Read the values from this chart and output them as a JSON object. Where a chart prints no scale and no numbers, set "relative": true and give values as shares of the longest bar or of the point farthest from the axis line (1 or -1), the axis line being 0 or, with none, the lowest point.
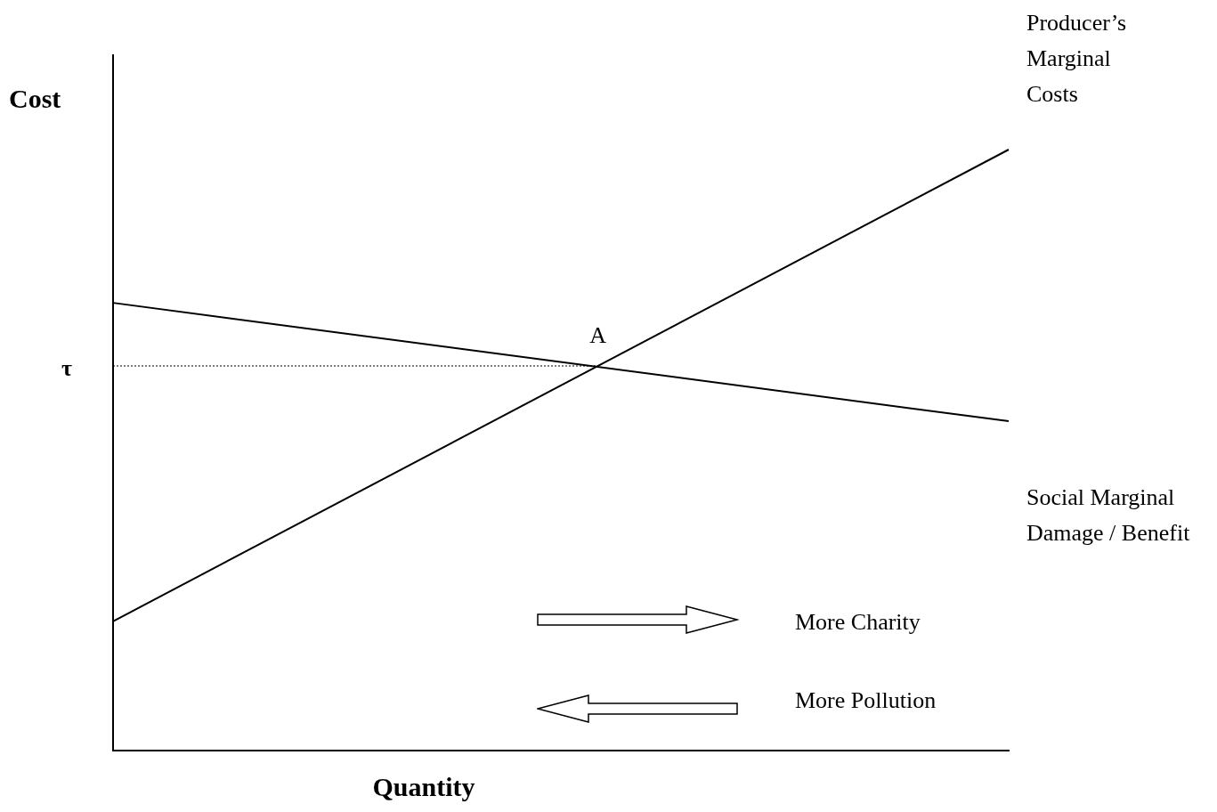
{
  "chart_data": {
    "type": "line",
    "relative": true,
    "ylabel": "Cost",
    "xlabel": "Quantity",
    "categories": [
      null,
      null
    ],
    "series": [
      {
        "name": "Producer’s Marginal Costs",
        "color": "#000000",
        "values": [
          0.215,
          1
        ]
      },
      {
        "name": "Social Marginal Damage / Benefit",
        "color": "#000000",
        "values": [
          0.745,
          0.548
        ]
      }
    ],
    "ref_lines": [
      {
        "axis": "y",
        "value": 0.64,
        "label": "τ",
        "line_style": "dotted",
        "color": "#000000"
      }
    ],
    "annotations": [
      "More Charity",
      "More Pollution",
      {
        "text": "A",
        "y": 0.64
      }
    ],
    "legend": false,
    "grid": false,
    "marker": "none",
    "line_style": "solid"
  }
}
